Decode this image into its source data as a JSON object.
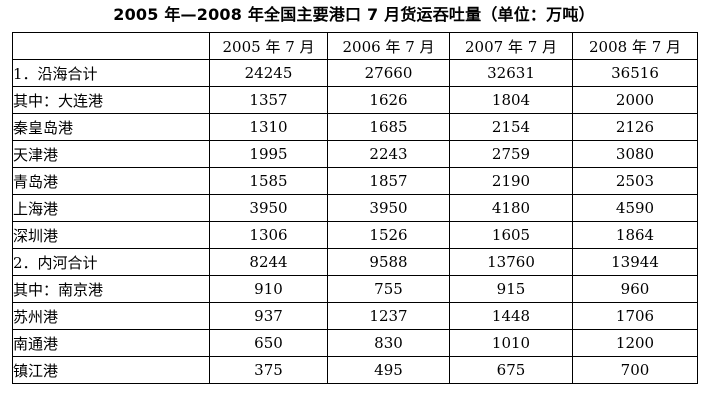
{
  "title": "2005 年—2008 年全国主要港口 7 月货运吞吐量（单位：万吨）",
  "header": [
    "",
    "2005 年 7 月",
    "2006 年 7 月",
    "2007 年 7 月",
    "2008 年 7 月"
  ],
  "rows": [
    {
      "label": "1．沿海合计",
      "values": [
        "24245",
        "27660",
        "32631",
        "36516"
      ]
    },
    {
      "label": "其中：大连港",
      "values": [
        "1357",
        "1626",
        "1804",
        "2000"
      ]
    },
    {
      "label": "秦皇岛港",
      "values": [
        "1310",
        "1685",
        "2154",
        "2126"
      ]
    },
    {
      "label": "天津港",
      "values": [
        "1995",
        "2243",
        "2759",
        "3080"
      ]
    },
    {
      "label": "青岛港",
      "values": [
        "1585",
        "1857",
        "2190",
        "2503"
      ]
    },
    {
      "label": "上海港",
      "values": [
        "3950",
        "3950",
        "4180",
        "4590"
      ]
    },
    {
      "label": "深圳港",
      "values": [
        "1306",
        "1526",
        "1605",
        "1864"
      ]
    },
    {
      "label": "2．内河合计",
      "values": [
        "8244",
        "9588",
        "13760",
        "13944"
      ]
    },
    {
      "label": "其中：南京港",
      "values": [
        "910",
        "755",
        "915",
        "960"
      ]
    },
    {
      "label": "苏州港",
      "values": [
        "937",
        "1237",
        "1448",
        "1706"
      ]
    },
    {
      "label": "南通港",
      "values": [
        "650",
        "830",
        "1010",
        "1200"
      ]
    },
    {
      "label": "镇江港",
      "values": [
        "375",
        "495",
        "675",
        "700"
      ]
    }
  ]
}
